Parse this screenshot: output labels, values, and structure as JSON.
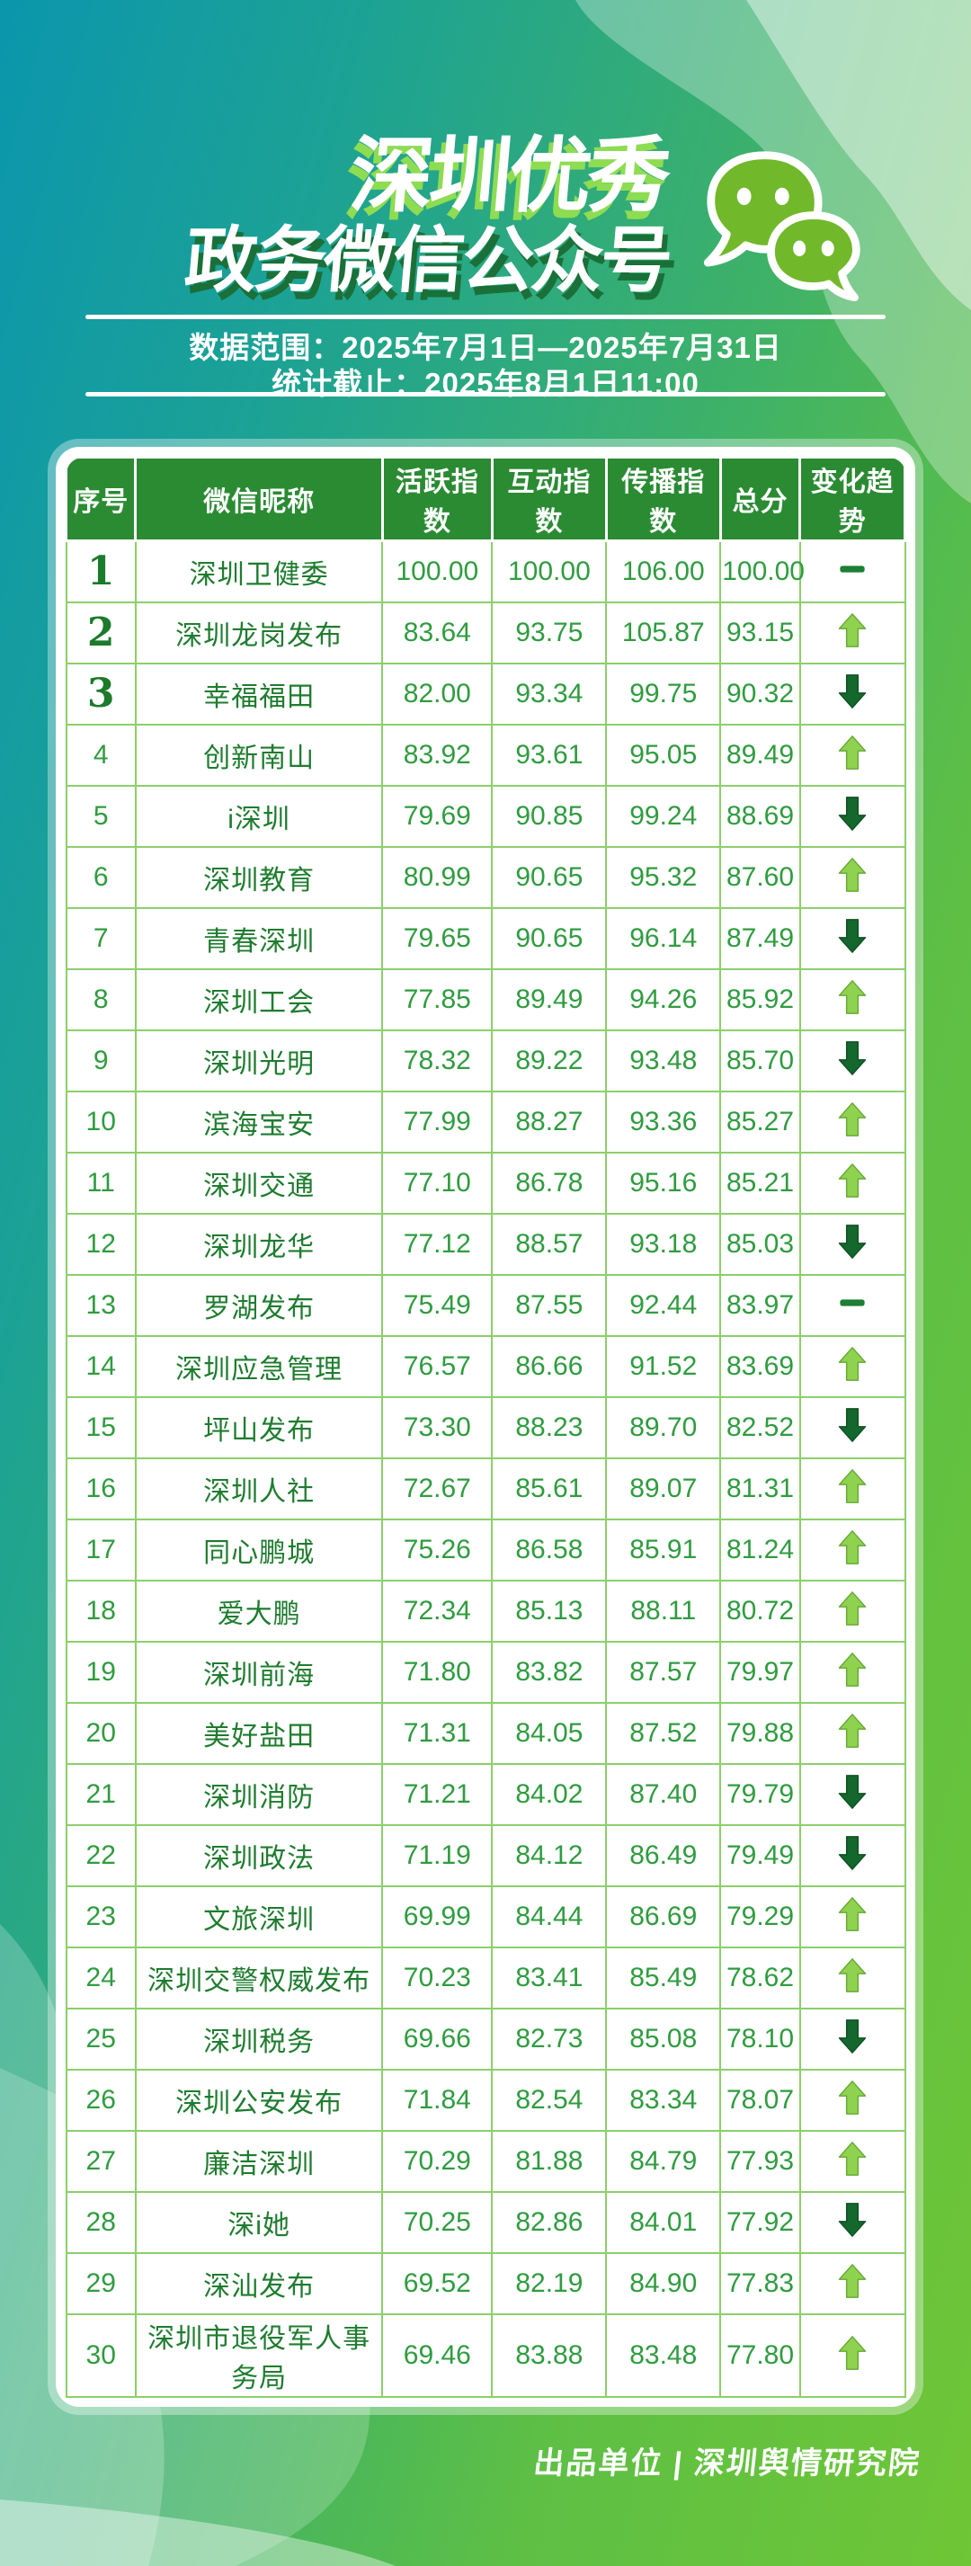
{
  "title": {
    "line1": "深圳优秀",
    "line2": "政务微信公众号"
  },
  "info": {
    "data_range": "数据范围：2025年7月1日—2025年7月31日",
    "stat_deadline": "统计截止：2025年8月1日11:00"
  },
  "table": {
    "headers": [
      "序号",
      "微信昵称",
      "活跃指数",
      "互动指数",
      "传播指数",
      "总分",
      "变化趋势"
    ],
    "rows": [
      {
        "rank": 1,
        "name": "深圳卫健委",
        "active": "100.00",
        "interact": "100.00",
        "spread": "106.00",
        "total": "100.00",
        "trend": "flat"
      },
      {
        "rank": 2,
        "name": "深圳龙岗发布",
        "active": "83.64",
        "interact": "93.75",
        "spread": "105.87",
        "total": "93.15",
        "trend": "up"
      },
      {
        "rank": 3,
        "name": "幸福福田",
        "active": "82.00",
        "interact": "93.34",
        "spread": "99.75",
        "total": "90.32",
        "trend": "down"
      },
      {
        "rank": 4,
        "name": "创新南山",
        "active": "83.92",
        "interact": "93.61",
        "spread": "95.05",
        "total": "89.49",
        "trend": "up"
      },
      {
        "rank": 5,
        "name": "i深圳",
        "active": "79.69",
        "interact": "90.85",
        "spread": "99.24",
        "total": "88.69",
        "trend": "down"
      },
      {
        "rank": 6,
        "name": "深圳教育",
        "active": "80.99",
        "interact": "90.65",
        "spread": "95.32",
        "total": "87.60",
        "trend": "up"
      },
      {
        "rank": 7,
        "name": "青春深圳",
        "active": "79.65",
        "interact": "90.65",
        "spread": "96.14",
        "total": "87.49",
        "trend": "down"
      },
      {
        "rank": 8,
        "name": "深圳工会",
        "active": "77.85",
        "interact": "89.49",
        "spread": "94.26",
        "total": "85.92",
        "trend": "up"
      },
      {
        "rank": 9,
        "name": "深圳光明",
        "active": "78.32",
        "interact": "89.22",
        "spread": "93.48",
        "total": "85.70",
        "trend": "down"
      },
      {
        "rank": 10,
        "name": "滨海宝安",
        "active": "77.99",
        "interact": "88.27",
        "spread": "93.36",
        "total": "85.27",
        "trend": "up"
      },
      {
        "rank": 11,
        "name": "深圳交通",
        "active": "77.10",
        "interact": "86.78",
        "spread": "95.16",
        "total": "85.21",
        "trend": "up"
      },
      {
        "rank": 12,
        "name": "深圳龙华",
        "active": "77.12",
        "interact": "88.57",
        "spread": "93.18",
        "total": "85.03",
        "trend": "down"
      },
      {
        "rank": 13,
        "name": "罗湖发布",
        "active": "75.49",
        "interact": "87.55",
        "spread": "92.44",
        "total": "83.97",
        "trend": "flat"
      },
      {
        "rank": 14,
        "name": "深圳应急管理",
        "active": "76.57",
        "interact": "86.66",
        "spread": "91.52",
        "total": "83.69",
        "trend": "up"
      },
      {
        "rank": 15,
        "name": "坪山发布",
        "active": "73.30",
        "interact": "88.23",
        "spread": "89.70",
        "total": "82.52",
        "trend": "down"
      },
      {
        "rank": 16,
        "name": "深圳人社",
        "active": "72.67",
        "interact": "85.61",
        "spread": "89.07",
        "total": "81.31",
        "trend": "up"
      },
      {
        "rank": 17,
        "name": "同心鹏城",
        "active": "75.26",
        "interact": "86.58",
        "spread": "85.91",
        "total": "81.24",
        "trend": "up"
      },
      {
        "rank": 18,
        "name": "爱大鹏",
        "active": "72.34",
        "interact": "85.13",
        "spread": "88.11",
        "total": "80.72",
        "trend": "up"
      },
      {
        "rank": 19,
        "name": "深圳前海",
        "active": "71.80",
        "interact": "83.82",
        "spread": "87.57",
        "total": "79.97",
        "trend": "up"
      },
      {
        "rank": 20,
        "name": "美好盐田",
        "active": "71.31",
        "interact": "84.05",
        "spread": "87.52",
        "total": "79.88",
        "trend": "up"
      },
      {
        "rank": 21,
        "name": "深圳消防",
        "active": "71.21",
        "interact": "84.02",
        "spread": "87.40",
        "total": "79.79",
        "trend": "down"
      },
      {
        "rank": 22,
        "name": "深圳政法",
        "active": "71.19",
        "interact": "84.12",
        "spread": "86.49",
        "total": "79.49",
        "trend": "down"
      },
      {
        "rank": 23,
        "name": "文旅深圳",
        "active": "69.99",
        "interact": "84.44",
        "spread": "86.69",
        "total": "79.29",
        "trend": "up"
      },
      {
        "rank": 24,
        "name": "深圳交警权威发布",
        "active": "70.23",
        "interact": "83.41",
        "spread": "85.49",
        "total": "78.62",
        "trend": "up"
      },
      {
        "rank": 25,
        "name": "深圳税务",
        "active": "69.66",
        "interact": "82.73",
        "spread": "85.08",
        "total": "78.10",
        "trend": "down"
      },
      {
        "rank": 26,
        "name": "深圳公安发布",
        "active": "71.84",
        "interact": "82.54",
        "spread": "83.34",
        "total": "78.07",
        "trend": "up"
      },
      {
        "rank": 27,
        "name": "廉洁深圳",
        "active": "70.29",
        "interact": "81.88",
        "spread": "84.79",
        "total": "77.93",
        "trend": "up"
      },
      {
        "rank": 28,
        "name": "深i她",
        "active": "70.25",
        "interact": "82.86",
        "spread": "84.01",
        "total": "77.92",
        "trend": "down"
      },
      {
        "rank": 29,
        "name": "深汕发布",
        "active": "69.52",
        "interact": "82.19",
        "spread": "84.90",
        "total": "77.83",
        "trend": "up"
      },
      {
        "rank": 30,
        "name": "深圳市退役军人事务局",
        "active": "69.46",
        "interact": "83.88",
        "spread": "83.48",
        "total": "77.80",
        "trend": "up"
      }
    ]
  },
  "footer": {
    "credit": "出品单位 | 深圳舆情研究院"
  },
  "icons": {
    "wechat_icon": "wechat-logo",
    "trend_up": "light-green-up-arrow",
    "trend_down": "dark-green-down-arrow",
    "trend_flat": "green-dash"
  },
  "colors": {
    "gradient_start": "#0b96ad",
    "gradient_end": "#6fc636",
    "header_green": "#2b8b33",
    "cell_border": "#8ccf6a",
    "name_text": "#1e7c2e",
    "number_text": "#2f9c3f",
    "up_arrow": "#8fd24f",
    "down_arrow": "#14672d",
    "bubble_fill": "#72b82b"
  },
  "chart_data": {
    "type": "table",
    "title": "深圳优秀政务微信公众号",
    "columns": [
      "序号",
      "微信昵称",
      "活跃指数",
      "互动指数",
      "传播指数",
      "总分",
      "变化趋势"
    ],
    "rows": [
      [
        1,
        "深圳卫健委",
        100.0,
        100.0,
        106.0,
        100.0,
        "—"
      ],
      [
        2,
        "深圳龙岗发布",
        83.64,
        93.75,
        105.87,
        93.15,
        "↑"
      ],
      [
        3,
        "幸福福田",
        82.0,
        93.34,
        99.75,
        90.32,
        "↓"
      ],
      [
        4,
        "创新南山",
        83.92,
        93.61,
        95.05,
        89.49,
        "↑"
      ],
      [
        5,
        "i深圳",
        79.69,
        90.85,
        99.24,
        88.69,
        "↓"
      ],
      [
        6,
        "深圳教育",
        80.99,
        90.65,
        95.32,
        87.6,
        "↑"
      ],
      [
        7,
        "青春深圳",
        79.65,
        90.65,
        96.14,
        87.49,
        "↓"
      ],
      [
        8,
        "深圳工会",
        77.85,
        89.49,
        94.26,
        85.92,
        "↑"
      ],
      [
        9,
        "深圳光明",
        78.32,
        89.22,
        93.48,
        85.7,
        "↓"
      ],
      [
        10,
        "滨海宝安",
        77.99,
        88.27,
        93.36,
        85.27,
        "↑"
      ],
      [
        11,
        "深圳交通",
        77.1,
        86.78,
        95.16,
        85.21,
        "↑"
      ],
      [
        12,
        "深圳龙华",
        77.12,
        88.57,
        93.18,
        85.03,
        "↓"
      ],
      [
        13,
        "罗湖发布",
        75.49,
        87.55,
        92.44,
        83.97,
        "—"
      ],
      [
        14,
        "深圳应急管理",
        76.57,
        86.66,
        91.52,
        83.69,
        "↑"
      ],
      [
        15,
        "坪山发布",
        73.3,
        88.23,
        89.7,
        82.52,
        "↓"
      ],
      [
        16,
        "深圳人社",
        72.67,
        85.61,
        89.07,
        81.31,
        "↑"
      ],
      [
        17,
        "同心鹏城",
        75.26,
        86.58,
        85.91,
        81.24,
        "↑"
      ],
      [
        18,
        "爱大鹏",
        72.34,
        85.13,
        88.11,
        80.72,
        "↑"
      ],
      [
        19,
        "深圳前海",
        71.8,
        83.82,
        87.57,
        79.97,
        "↑"
      ],
      [
        20,
        "美好盐田",
        71.31,
        84.05,
        87.52,
        79.88,
        "↑"
      ],
      [
        21,
        "深圳消防",
        71.21,
        84.02,
        87.4,
        79.79,
        "↓"
      ],
      [
        22,
        "深圳政法",
        71.19,
        84.12,
        86.49,
        79.49,
        "↓"
      ],
      [
        23,
        "文旅深圳",
        69.99,
        84.44,
        86.69,
        79.29,
        "↑"
      ],
      [
        24,
        "深圳交警权威发布",
        70.23,
        83.41,
        85.49,
        78.62,
        "↑"
      ],
      [
        25,
        "深圳税务",
        69.66,
        82.73,
        85.08,
        78.1,
        "↓"
      ],
      [
        26,
        "深圳公安发布",
        71.84,
        82.54,
        83.34,
        78.07,
        "↑"
      ],
      [
        27,
        "廉洁深圳",
        70.29,
        81.88,
        84.79,
        77.93,
        "↑"
      ],
      [
        28,
        "深i她",
        70.25,
        82.86,
        84.01,
        77.92,
        "↓"
      ],
      [
        29,
        "深汕发布",
        69.52,
        82.19,
        84.9,
        77.83,
        "↑"
      ],
      [
        30,
        "深圳市退役军人事务局",
        69.46,
        83.88,
        83.48,
        77.8,
        "↑"
      ]
    ]
  }
}
